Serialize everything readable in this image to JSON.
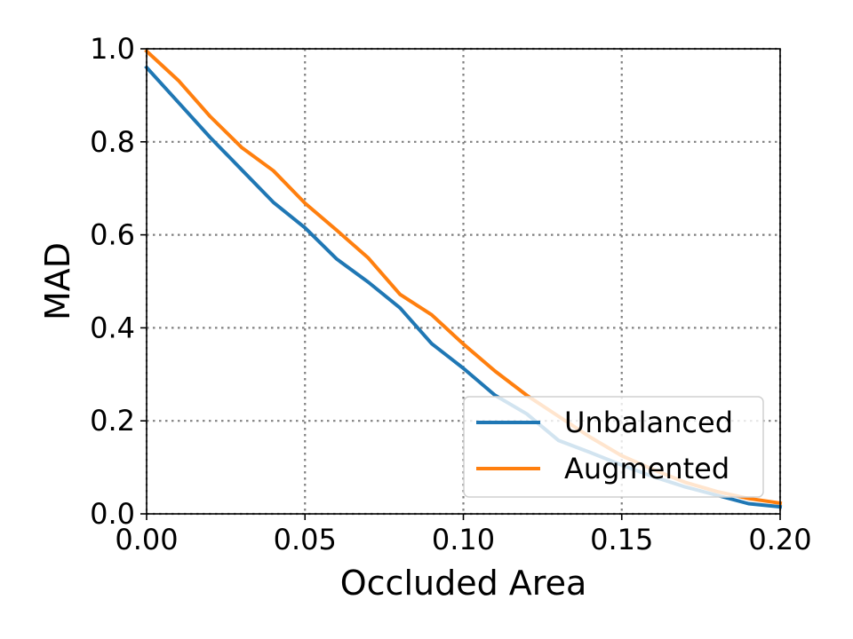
{
  "chart_data": {
    "type": "line",
    "title": "",
    "xlabel": "Occluded Area",
    "ylabel": "MAD",
    "xlim": [
      0.0,
      0.2
    ],
    "ylim": [
      0.0,
      1.0
    ],
    "xticks": [
      "0.00",
      "0.05",
      "0.10",
      "0.15",
      "0.20"
    ],
    "yticks": [
      "0.0",
      "0.2",
      "0.4",
      "0.6",
      "0.8",
      "1.0"
    ],
    "grid": true,
    "legend_position": "lower-right",
    "x": [
      0.0,
      0.01,
      0.02,
      0.03,
      0.04,
      0.05,
      0.06,
      0.07,
      0.08,
      0.09,
      0.1,
      0.11,
      0.12,
      0.13,
      0.14,
      0.15,
      0.16,
      0.17,
      0.18,
      0.19,
      0.2
    ],
    "series": [
      {
        "name": "Unbalanced",
        "color": "#1f77b4",
        "values": [
          0.96,
          0.885,
          0.81,
          0.74,
          0.67,
          0.615,
          0.548,
          0.498,
          0.443,
          0.366,
          0.313,
          0.255,
          0.215,
          0.158,
          0.132,
          0.105,
          0.08,
          0.058,
          0.04,
          0.022,
          0.015
        ]
      },
      {
        "name": "Augmented",
        "color": "#ff7f0e",
        "values": [
          0.995,
          0.932,
          0.855,
          0.788,
          0.738,
          0.668,
          0.61,
          0.55,
          0.472,
          0.428,
          0.365,
          0.307,
          0.255,
          0.21,
          0.165,
          0.125,
          0.095,
          0.068,
          0.048,
          0.033,
          0.023
        ]
      }
    ]
  }
}
